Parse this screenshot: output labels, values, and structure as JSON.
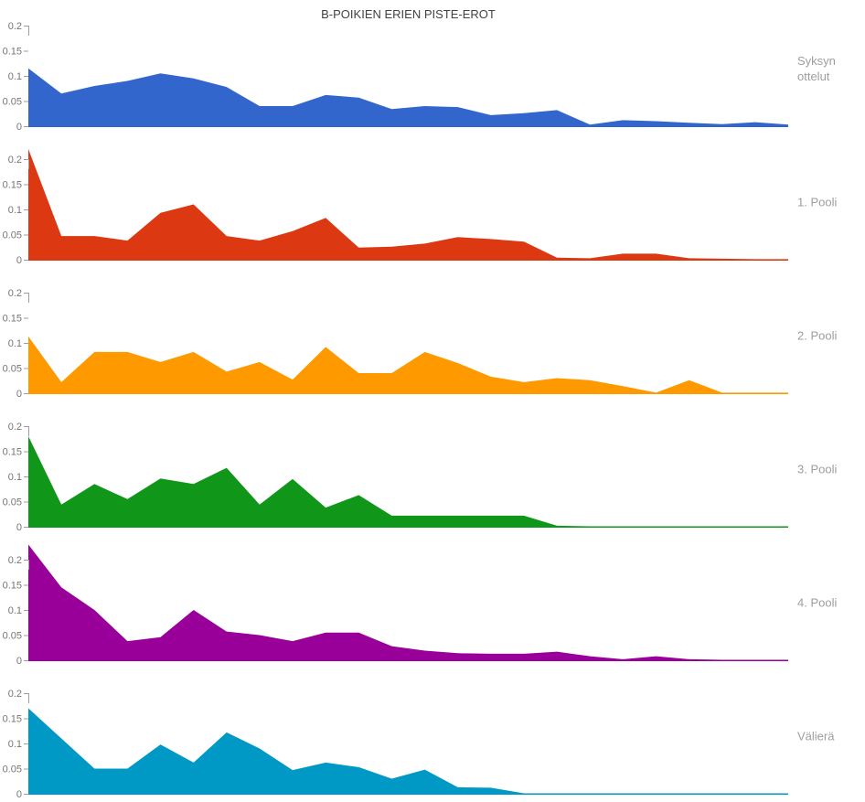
{
  "title": "B-POIKIEN ERIEN PISTE-EROT",
  "text_colors": {
    "title": "#424242",
    "tick_label": "#757575",
    "panel_label": "#9E9E9E",
    "axis": "#9E9E9E"
  },
  "chart_data": {
    "type": "area",
    "layout": "small-multiples, 6 vertically stacked panels sharing an unlabeled x-axis",
    "title": "B-POIKIEN ERIEN PISTE-EROT",
    "xlabel": "",
    "ylabel": "",
    "ylim": [
      0,
      0.2
    ],
    "y_ticks": [
      "0",
      "0.05",
      "0.1",
      "0.15",
      "0.2"
    ],
    "grid": false,
    "legend_position": "right of each panel",
    "x_count": 24,
    "series": [
      {
        "name": "Syksyn ottelut",
        "label_lines": [
          "Syksyn",
          "ottelut"
        ],
        "color": "#3366CC",
        "values": [
          0.115,
          0.065,
          0.08,
          0.09,
          0.105,
          0.095,
          0.078,
          0.04,
          0.04,
          0.062,
          0.057,
          0.034,
          0.04,
          0.038,
          0.022,
          0.026,
          0.032,
          0.003,
          0.012,
          0.01,
          0.007,
          0.004,
          0.008,
          0.003
        ]
      },
      {
        "name": "1. Pooli",
        "label_lines": [
          "1. Pooli"
        ],
        "color": "#DC3912",
        "values": [
          0.22,
          0.047,
          0.047,
          0.038,
          0.093,
          0.11,
          0.047,
          0.038,
          0.057,
          0.083,
          0.024,
          0.026,
          0.032,
          0.045,
          0.041,
          0.036,
          0.004,
          0.003,
          0.012,
          0.012,
          0.003,
          0.002,
          0.001,
          0.001
        ]
      },
      {
        "name": "2. Pooli",
        "label_lines": [
          "2. Pooli"
        ],
        "color": "#FF9900",
        "values": [
          0.113,
          0.022,
          0.082,
          0.082,
          0.062,
          0.082,
          0.043,
          0.062,
          0.027,
          0.092,
          0.04,
          0.04,
          0.082,
          0.06,
          0.033,
          0.022,
          0.03,
          0.026,
          0.014,
          0.001,
          0.026,
          0.001,
          0.001,
          0.001
        ]
      },
      {
        "name": "3. Pooli",
        "label_lines": [
          "3. Pooli"
        ],
        "color": "#109618",
        "values": [
          0.18,
          0.044,
          0.085,
          0.055,
          0.096,
          0.085,
          0.117,
          0.044,
          0.095,
          0.038,
          0.063,
          0.022,
          0.022,
          0.022,
          0.022,
          0.022,
          0.002,
          0.001,
          0.001,
          0.001,
          0.001,
          0.001,
          0.001,
          0.001
        ]
      },
      {
        "name": "4. Pooli",
        "label_lines": [
          "4. Pooli"
        ],
        "color": "#990099",
        "values": [
          0.23,
          0.145,
          0.1,
          0.038,
          0.046,
          0.1,
          0.057,
          0.05,
          0.038,
          0.055,
          0.055,
          0.028,
          0.019,
          0.014,
          0.013,
          0.013,
          0.017,
          0.008,
          0.002,
          0.008,
          0.002,
          0.001,
          0.001,
          0.001
        ]
      },
      {
        "name": "Välierä",
        "label_lines": [
          "Välierä"
        ],
        "color": "#0099C6",
        "values": [
          0.17,
          0.11,
          0.05,
          0.05,
          0.098,
          0.062,
          0.122,
          0.09,
          0.047,
          0.062,
          0.053,
          0.03,
          0.048,
          0.013,
          0.012,
          0.001,
          0.001,
          0.001,
          0.001,
          0.001,
          0.001,
          0.001,
          0.001,
          0.001
        ]
      }
    ]
  }
}
